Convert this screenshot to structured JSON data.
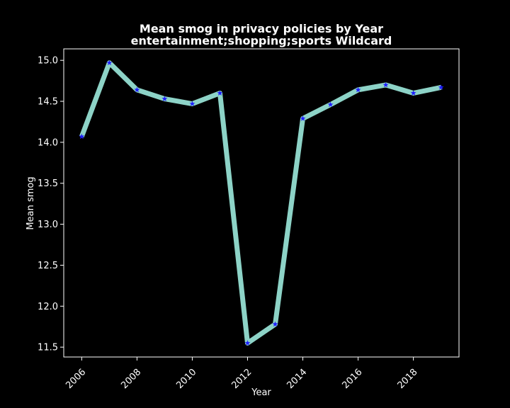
{
  "chart_data": {
    "type": "line",
    "title": "Mean smog in privacy policies by Year",
    "subtitle": "entertainment;shopping;sports Wildcard",
    "xlabel": "Year",
    "ylabel": "Mean smog",
    "x": [
      2006,
      2007,
      2008,
      2009,
      2010,
      2011,
      2012,
      2013,
      2014,
      2015,
      2016,
      2017,
      2018,
      2019
    ],
    "series": [
      {
        "values": [
          14.07,
          14.97,
          14.64,
          14.53,
          14.47,
          14.6,
          11.55,
          11.78,
          14.29,
          14.46,
          14.64,
          14.7,
          14.6,
          14.67
        ]
      }
    ],
    "xlim": [
      2005.35,
      2019.65
    ],
    "ylim": [
      11.38,
      15.14
    ],
    "xticks": [
      "2006",
      "2008",
      "2010",
      "2012",
      "2014",
      "2016",
      "2018"
    ],
    "yticks": [
      "11.5",
      "12.0",
      "12.5",
      "13.0",
      "13.5",
      "14.0",
      "14.5",
      "15.0"
    ],
    "grid": false,
    "legend": "none",
    "colors": {
      "background": "#000000",
      "line": "#8dd3c7",
      "marker": "#1f1fff",
      "axes": "#ffffff",
      "text": "#ffffff"
    }
  }
}
